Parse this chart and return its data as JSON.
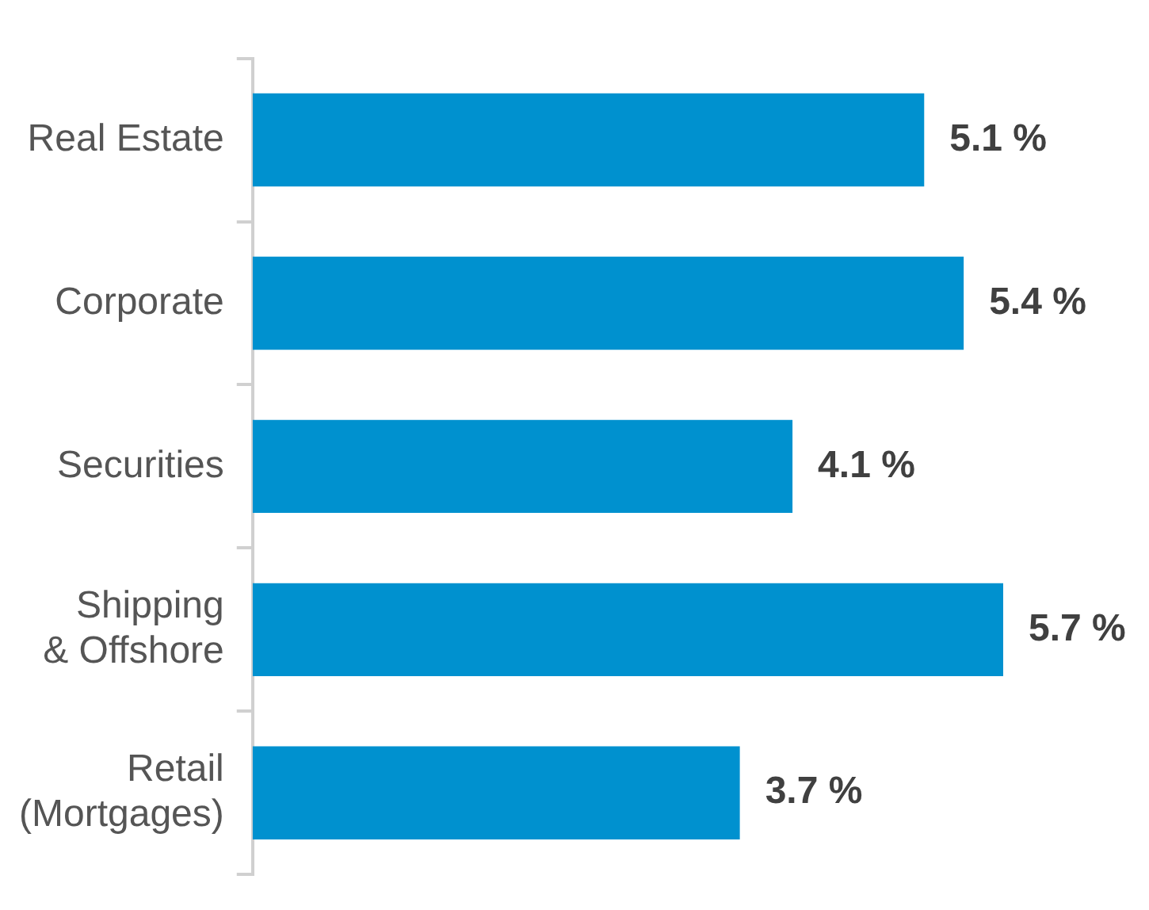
{
  "chart_data": {
    "type": "bar",
    "orientation": "horizontal",
    "categories": [
      "Real Estate",
      "Corporate",
      "Securities",
      "Shipping\n& Offshore",
      "Retail\n(Mortgages)"
    ],
    "values": [
      5.1,
      5.4,
      4.1,
      5.7,
      3.7
    ],
    "value_labels": [
      "5.1 %",
      "5.4 %",
      "4.1 %",
      "5.7 %",
      "3.7 %"
    ],
    "color": "#0091cf",
    "legend": false,
    "tick_labels": "y"
  }
}
